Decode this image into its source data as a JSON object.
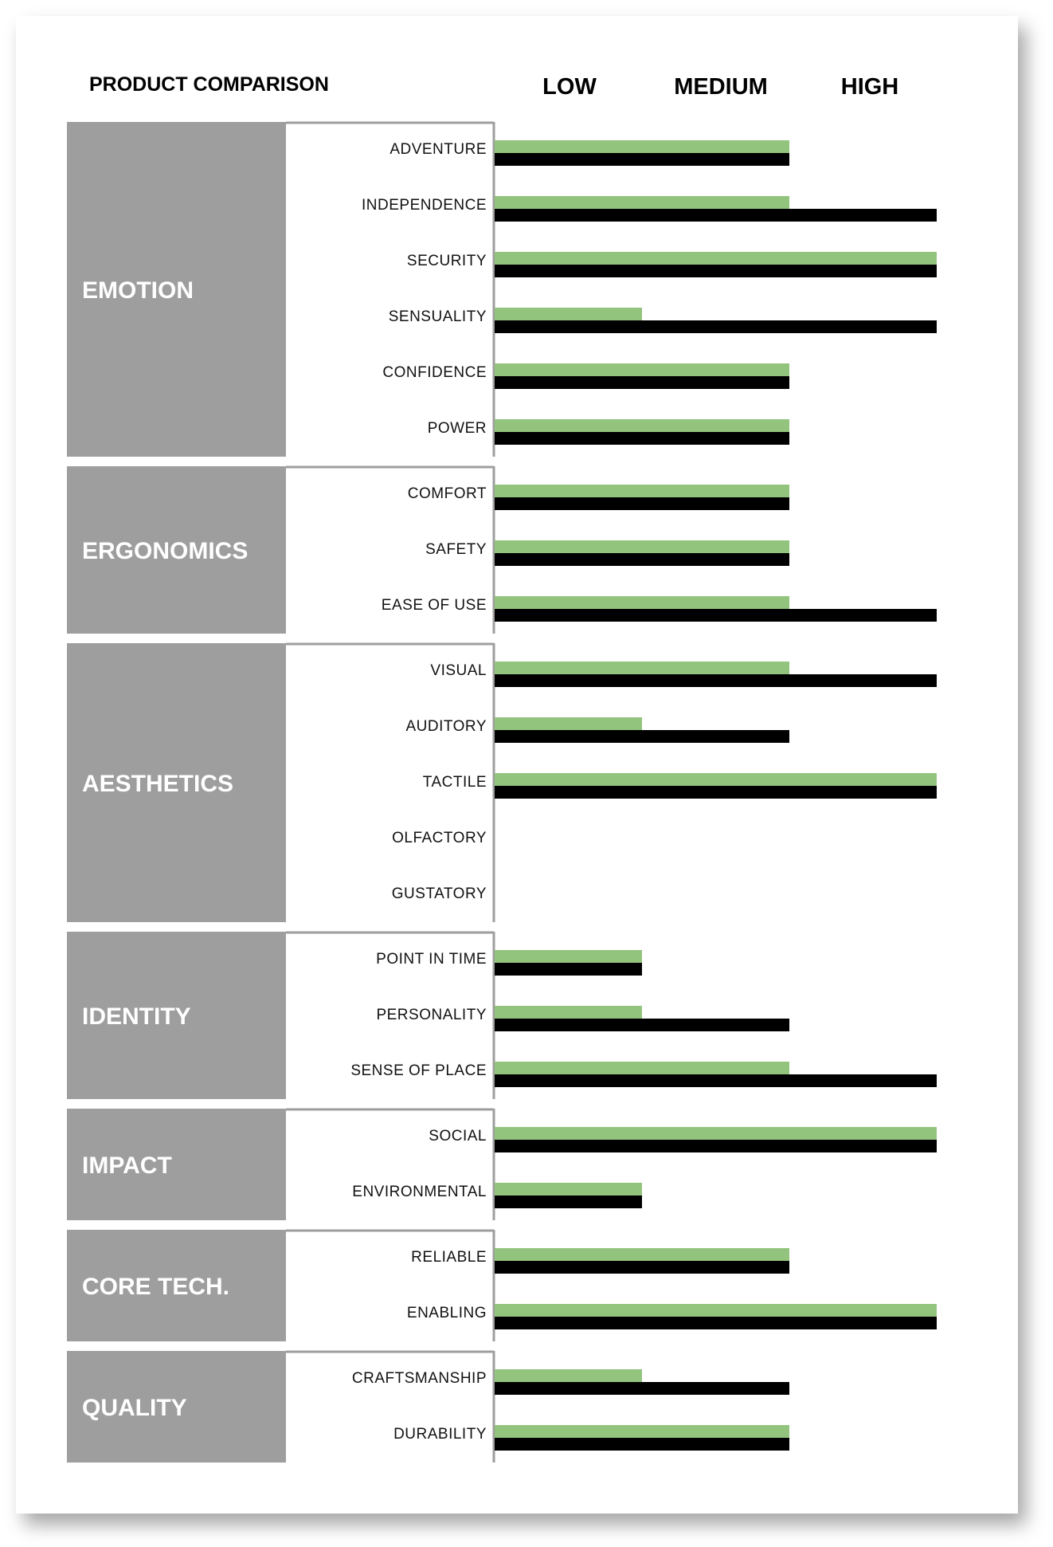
{
  "chart_data": {
    "type": "bar",
    "orientation": "horizontal",
    "title": "PRODUCT COMPARISON",
    "scale_labels": [
      "LOW",
      "MEDIUM",
      "HIGH"
    ],
    "xlim": [
      0,
      3
    ],
    "colors": {
      "series_1": "#93c47d",
      "series_2": "#000000",
      "category_fill": "#9e9e9e",
      "divider": "#9e9e9e"
    },
    "groups": [
      {
        "name": "EMOTION",
        "items": [
          {
            "label": "ADVENTURE",
            "values": [
              2,
              2
            ]
          },
          {
            "label": "INDEPENDENCE",
            "values": [
              2,
              3
            ]
          },
          {
            "label": "SECURITY",
            "values": [
              3,
              3
            ]
          },
          {
            "label": "SENSUALITY",
            "values": [
              1,
              3
            ]
          },
          {
            "label": "CONFIDENCE",
            "values": [
              2,
              2
            ]
          },
          {
            "label": "POWER",
            "values": [
              2,
              2
            ]
          }
        ]
      },
      {
        "name": "ERGONOMICS",
        "items": [
          {
            "label": "COMFORT",
            "values": [
              2,
              2
            ]
          },
          {
            "label": "SAFETY",
            "values": [
              2,
              2
            ]
          },
          {
            "label": "EASE OF USE",
            "values": [
              2,
              3
            ]
          }
        ]
      },
      {
        "name": "AESTHETICS",
        "items": [
          {
            "label": "VISUAL",
            "values": [
              2,
              3
            ]
          },
          {
            "label": "AUDITORY",
            "values": [
              1,
              2
            ]
          },
          {
            "label": "TACTILE",
            "values": [
              3,
              3
            ]
          },
          {
            "label": "OLFACTORY",
            "values": [
              0,
              0
            ]
          },
          {
            "label": "GUSTATORY",
            "values": [
              0,
              0
            ]
          }
        ]
      },
      {
        "name": "IDENTITY",
        "items": [
          {
            "label": "POINT IN TIME",
            "values": [
              1,
              1
            ]
          },
          {
            "label": "PERSONALITY",
            "values": [
              1,
              2
            ]
          },
          {
            "label": "SENSE OF PLACE",
            "values": [
              2,
              3
            ]
          }
        ]
      },
      {
        "name": "IMPACT",
        "items": [
          {
            "label": "SOCIAL",
            "values": [
              3,
              3
            ]
          },
          {
            "label": "ENVIRONMENTAL",
            "values": [
              1,
              1
            ]
          }
        ]
      },
      {
        "name": "CORE TECH.",
        "items": [
          {
            "label": "RELIABLE",
            "values": [
              2,
              2
            ]
          },
          {
            "label": "ENABLING",
            "values": [
              3,
              3
            ]
          }
        ]
      },
      {
        "name": "QUALITY",
        "items": [
          {
            "label": "CRAFTSMANSHIP",
            "values": [
              1,
              2
            ]
          },
          {
            "label": "DURABILITY",
            "values": [
              2,
              2
            ]
          }
        ]
      }
    ]
  }
}
